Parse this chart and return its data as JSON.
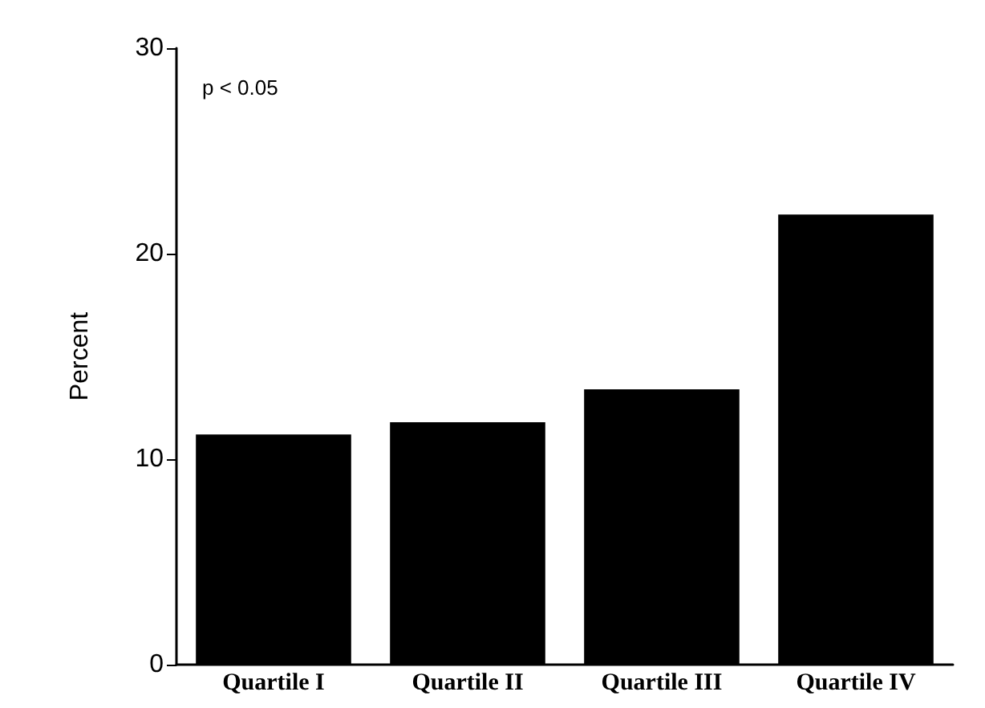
{
  "chart_data": {
    "type": "bar",
    "ylabel": "Percent",
    "annotations": [
      "p < 0.05"
    ],
    "categories": [
      "Quartile I",
      "Quartile II",
      "Quartile III",
      "Quartile IV"
    ],
    "values": [
      11.2,
      11.8,
      13.4,
      21.9
    ],
    "color": "#000000",
    "ylim": [
      0,
      30
    ],
    "yticks": [
      0,
      10,
      20,
      30
    ],
    "grid": false
  }
}
